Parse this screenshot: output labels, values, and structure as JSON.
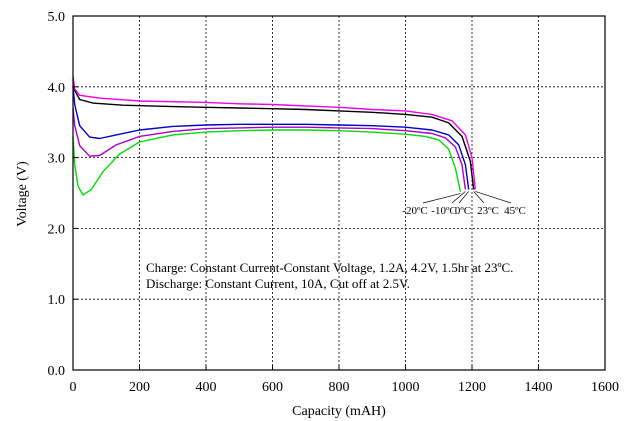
{
  "chart_data": {
    "type": "line",
    "title": "",
    "xlabel": "Capacity (mAH)",
    "ylabel": "Voltage (V)",
    "xlim": [
      0,
      1600
    ],
    "ylim": [
      0,
      5
    ],
    "x_ticks": [
      0,
      200,
      400,
      600,
      800,
      1000,
      1200,
      1400,
      1600
    ],
    "y_ticks": [
      0,
      1,
      2,
      3,
      4,
      5
    ],
    "x_tick_labels": [
      "0",
      "200",
      "400",
      "600",
      "800",
      "1000",
      "1200",
      "1400",
      "1600"
    ],
    "y_tick_labels": [
      "0.0",
      "1.0",
      "2.0",
      "3.0",
      "4.0",
      "5.0"
    ],
    "grid": true,
    "annotations": [
      "Charge: Constant Current-Constant Voltage, 1.2A, 4.2V, 1.5hr at 23ºC.",
      "Discharge: Constant Current, 10A, Cut off at 2.5V."
    ],
    "series": [
      {
        "name": "-20ºC",
        "color": "#00dd00",
        "points": [
          [
            0,
            3.3
          ],
          [
            5,
            2.9
          ],
          [
            15,
            2.6
          ],
          [
            30,
            2.47
          ],
          [
            55,
            2.55
          ],
          [
            90,
            2.8
          ],
          [
            140,
            3.05
          ],
          [
            200,
            3.22
          ],
          [
            300,
            3.32
          ],
          [
            400,
            3.36
          ],
          [
            500,
            3.38
          ],
          [
            600,
            3.39
          ],
          [
            700,
            3.39
          ],
          [
            800,
            3.38
          ],
          [
            900,
            3.36
          ],
          [
            1000,
            3.33
          ],
          [
            1060,
            3.3
          ],
          [
            1100,
            3.25
          ],
          [
            1130,
            3.12
          ],
          [
            1150,
            2.85
          ],
          [
            1165,
            2.52
          ]
        ]
      },
      {
        "name": "-10ºC",
        "color": "#aa00cc",
        "points": [
          [
            0,
            3.7
          ],
          [
            5,
            3.45
          ],
          [
            20,
            3.17
          ],
          [
            50,
            3.02
          ],
          [
            80,
            3.03
          ],
          [
            130,
            3.18
          ],
          [
            200,
            3.3
          ],
          [
            300,
            3.37
          ],
          [
            400,
            3.41
          ],
          [
            500,
            3.42
          ],
          [
            600,
            3.43
          ],
          [
            700,
            3.43
          ],
          [
            800,
            3.42
          ],
          [
            900,
            3.41
          ],
          [
            1000,
            3.38
          ],
          [
            1080,
            3.34
          ],
          [
            1120,
            3.28
          ],
          [
            1150,
            3.15
          ],
          [
            1170,
            2.9
          ],
          [
            1180,
            2.55
          ]
        ]
      },
      {
        "name": "0ºC",
        "color": "#0000cc",
        "points": [
          [
            0,
            4.0
          ],
          [
            5,
            3.75
          ],
          [
            20,
            3.45
          ],
          [
            50,
            3.29
          ],
          [
            80,
            3.27
          ],
          [
            130,
            3.32
          ],
          [
            200,
            3.39
          ],
          [
            300,
            3.44
          ],
          [
            400,
            3.46
          ],
          [
            500,
            3.47
          ],
          [
            600,
            3.47
          ],
          [
            700,
            3.47
          ],
          [
            800,
            3.46
          ],
          [
            900,
            3.45
          ],
          [
            1000,
            3.43
          ],
          [
            1080,
            3.39
          ],
          [
            1130,
            3.32
          ],
          [
            1160,
            3.18
          ],
          [
            1180,
            2.9
          ],
          [
            1190,
            2.55
          ]
        ]
      },
      {
        "name": "23ºC",
        "color": "#000000",
        "points": [
          [
            0,
            4.1
          ],
          [
            5,
            3.95
          ],
          [
            20,
            3.82
          ],
          [
            60,
            3.77
          ],
          [
            150,
            3.74
          ],
          [
            300,
            3.72
          ],
          [
            400,
            3.71
          ],
          [
            500,
            3.7
          ],
          [
            600,
            3.69
          ],
          [
            700,
            3.68
          ],
          [
            800,
            3.66
          ],
          [
            900,
            3.64
          ],
          [
            1000,
            3.61
          ],
          [
            1080,
            3.57
          ],
          [
            1130,
            3.49
          ],
          [
            1170,
            3.3
          ],
          [
            1195,
            2.95
          ],
          [
            1205,
            2.55
          ]
        ]
      },
      {
        "name": "45ºC",
        "color": "#ee00ee",
        "points": [
          [
            0,
            4.15
          ],
          [
            5,
            3.97
          ],
          [
            20,
            3.88
          ],
          [
            80,
            3.84
          ],
          [
            200,
            3.8
          ],
          [
            300,
            3.79
          ],
          [
            400,
            3.78
          ],
          [
            500,
            3.76
          ],
          [
            600,
            3.75
          ],
          [
            700,
            3.73
          ],
          [
            800,
            3.71
          ],
          [
            900,
            3.68
          ],
          [
            1000,
            3.66
          ],
          [
            1080,
            3.61
          ],
          [
            1140,
            3.52
          ],
          [
            1180,
            3.32
          ],
          [
            1200,
            3.0
          ],
          [
            1210,
            2.55
          ]
        ]
      }
    ]
  }
}
